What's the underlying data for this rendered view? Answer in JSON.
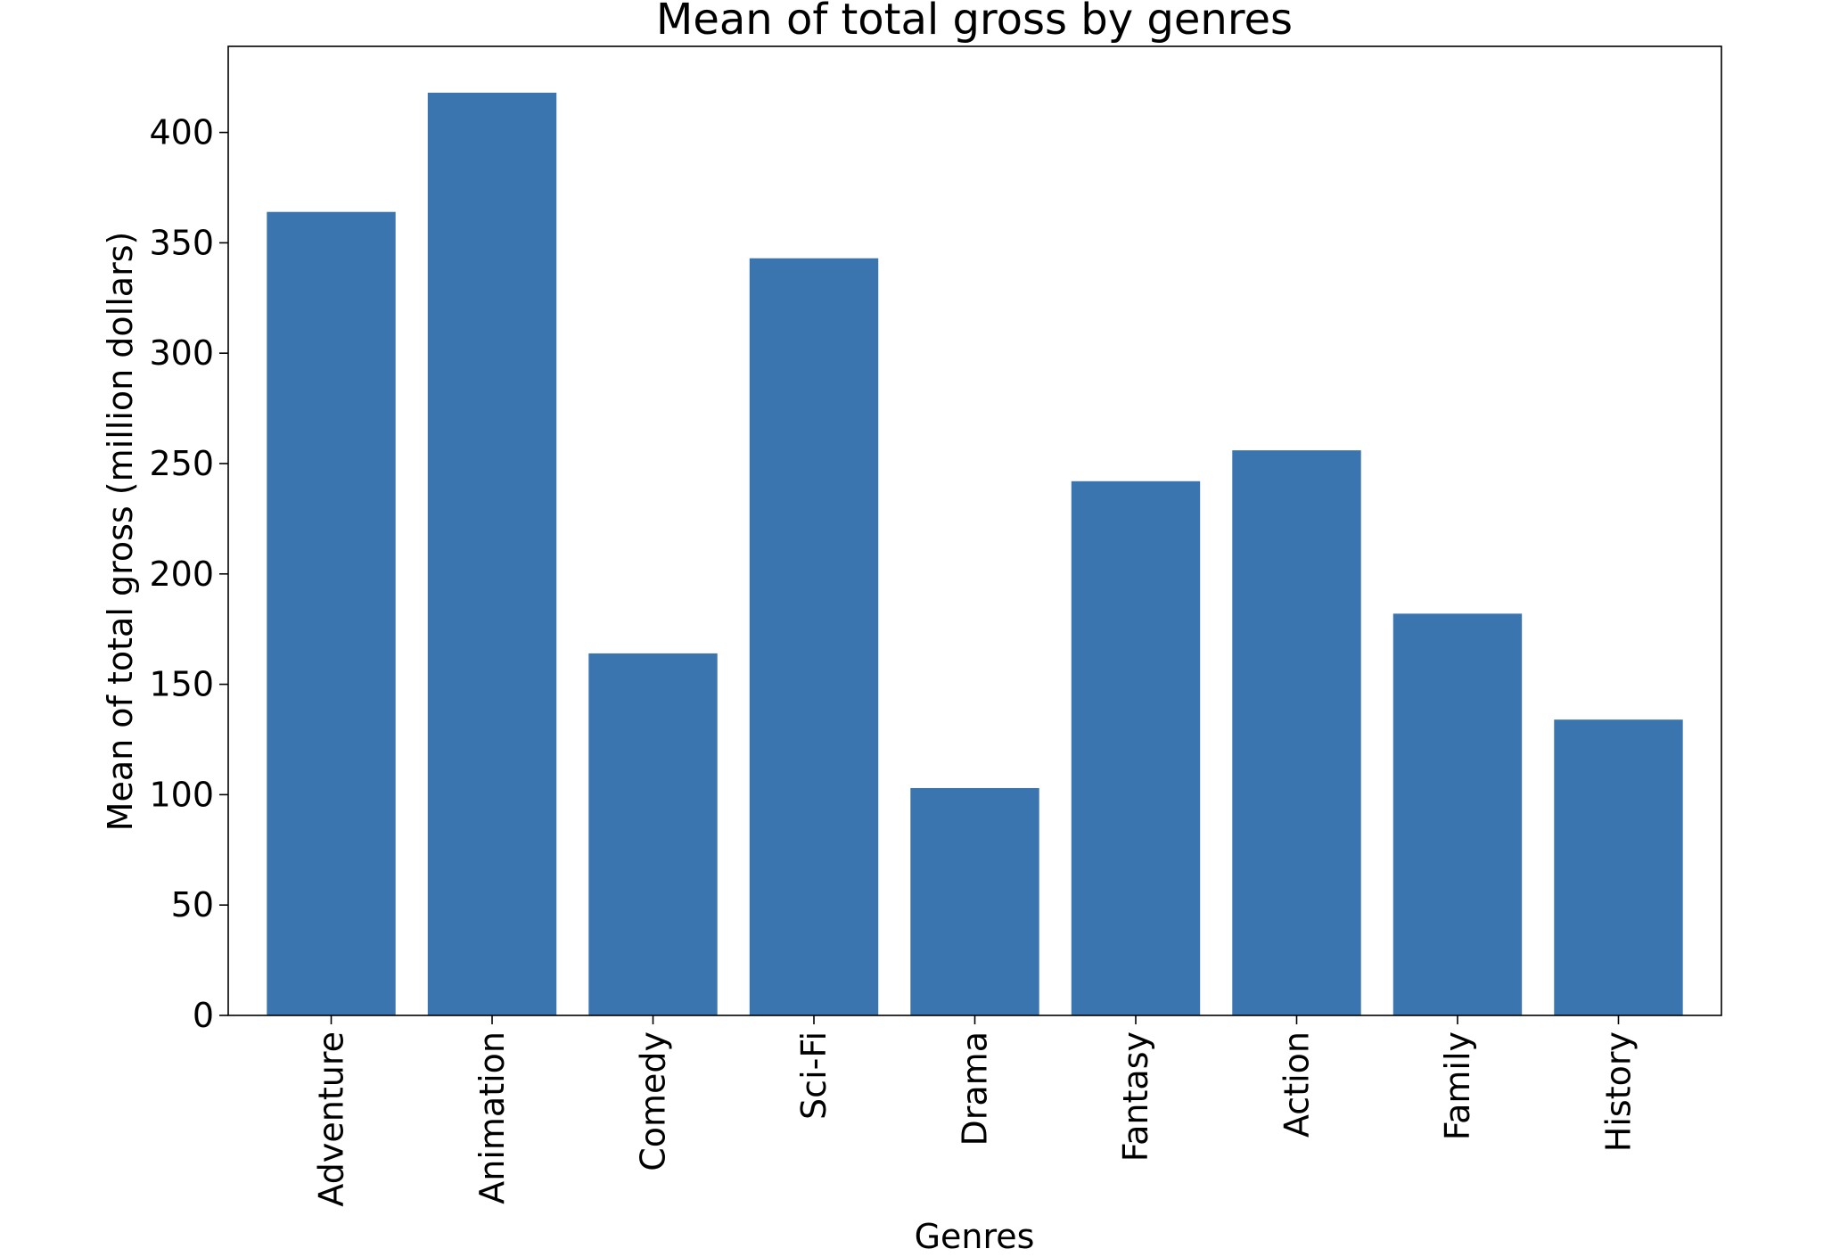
{
  "chart_data": {
    "type": "bar",
    "title": "Mean of total gross by genres",
    "xlabel": "Genres",
    "ylabel": "Mean of total gross (million dollars)",
    "categories": [
      "Adventure",
      "Animation",
      "Comedy",
      "Sci-Fi",
      "Drama",
      "Fantasy",
      "Action",
      "Family",
      "History"
    ],
    "values": [
      364,
      418,
      164,
      343,
      103,
      242,
      256,
      182,
      134
    ],
    "ylim": [
      0,
      439
    ],
    "yticks": [
      0,
      50,
      100,
      150,
      200,
      250,
      300,
      350,
      400
    ],
    "grid": false,
    "bar_color": "#3a75af"
  }
}
